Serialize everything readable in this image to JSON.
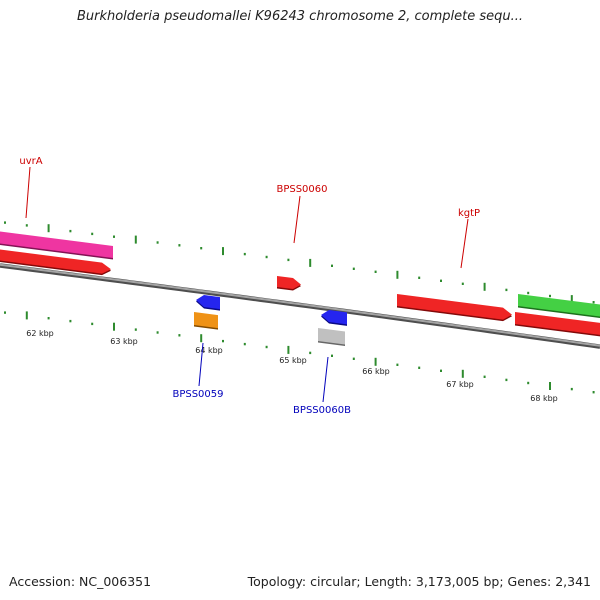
{
  "title": "Burkholderia pseudomallei K96243 chromosome 2, complete sequ...",
  "footer": {
    "accession": "Accession: NC_006351",
    "summary": "Topology: circular; Length: 3,173,005 bp; Genes: 2,341"
  },
  "colors": {
    "backbone": "#7a7a7a",
    "tick": "#2e8b2e",
    "forward_label": "#cc0000",
    "reverse_label": "#0000bb"
  },
  "ticks": [
    {
      "label": "62 kbp"
    },
    {
      "label": "63 kbp"
    },
    {
      "label": "64 kbp"
    },
    {
      "label": "65 kbp"
    },
    {
      "label": "66 kbp"
    },
    {
      "label": "67 kbp"
    },
    {
      "label": "68 kbp"
    }
  ],
  "genes": [
    {
      "id": "uvrA-upper",
      "color": "#ee2299",
      "strand": "+"
    },
    {
      "id": "uvrA-lower",
      "color": "#ee1111",
      "strand": "+"
    },
    {
      "id": "BPSS0060",
      "color": "#ee1111",
      "strand": "+"
    },
    {
      "id": "kgtP-red",
      "color": "#ee1111",
      "strand": "+"
    },
    {
      "id": "green-gene",
      "color": "#33cc33",
      "strand": "+"
    },
    {
      "id": "red-right",
      "color": "#ee1111",
      "strand": "+"
    },
    {
      "id": "BPSS0059-blue",
      "color": "#1111ee",
      "strand": "-"
    },
    {
      "id": "BPSS0059-orange",
      "color": "#ee8800",
      "strand": "-"
    },
    {
      "id": "BPSS0060B-blue",
      "color": "#1111ee",
      "strand": "-"
    },
    {
      "id": "BPSS0060B-gray",
      "color": "#bbbbbb",
      "strand": "-"
    }
  ],
  "gene_labels": [
    {
      "text": "uvrA",
      "strand": "forward"
    },
    {
      "text": "BPSS0060",
      "strand": "forward"
    },
    {
      "text": "kgtP",
      "strand": "forward"
    },
    {
      "text": "BPSS0059",
      "strand": "reverse"
    },
    {
      "text": "BPSS0060B",
      "strand": "reverse"
    }
  ]
}
